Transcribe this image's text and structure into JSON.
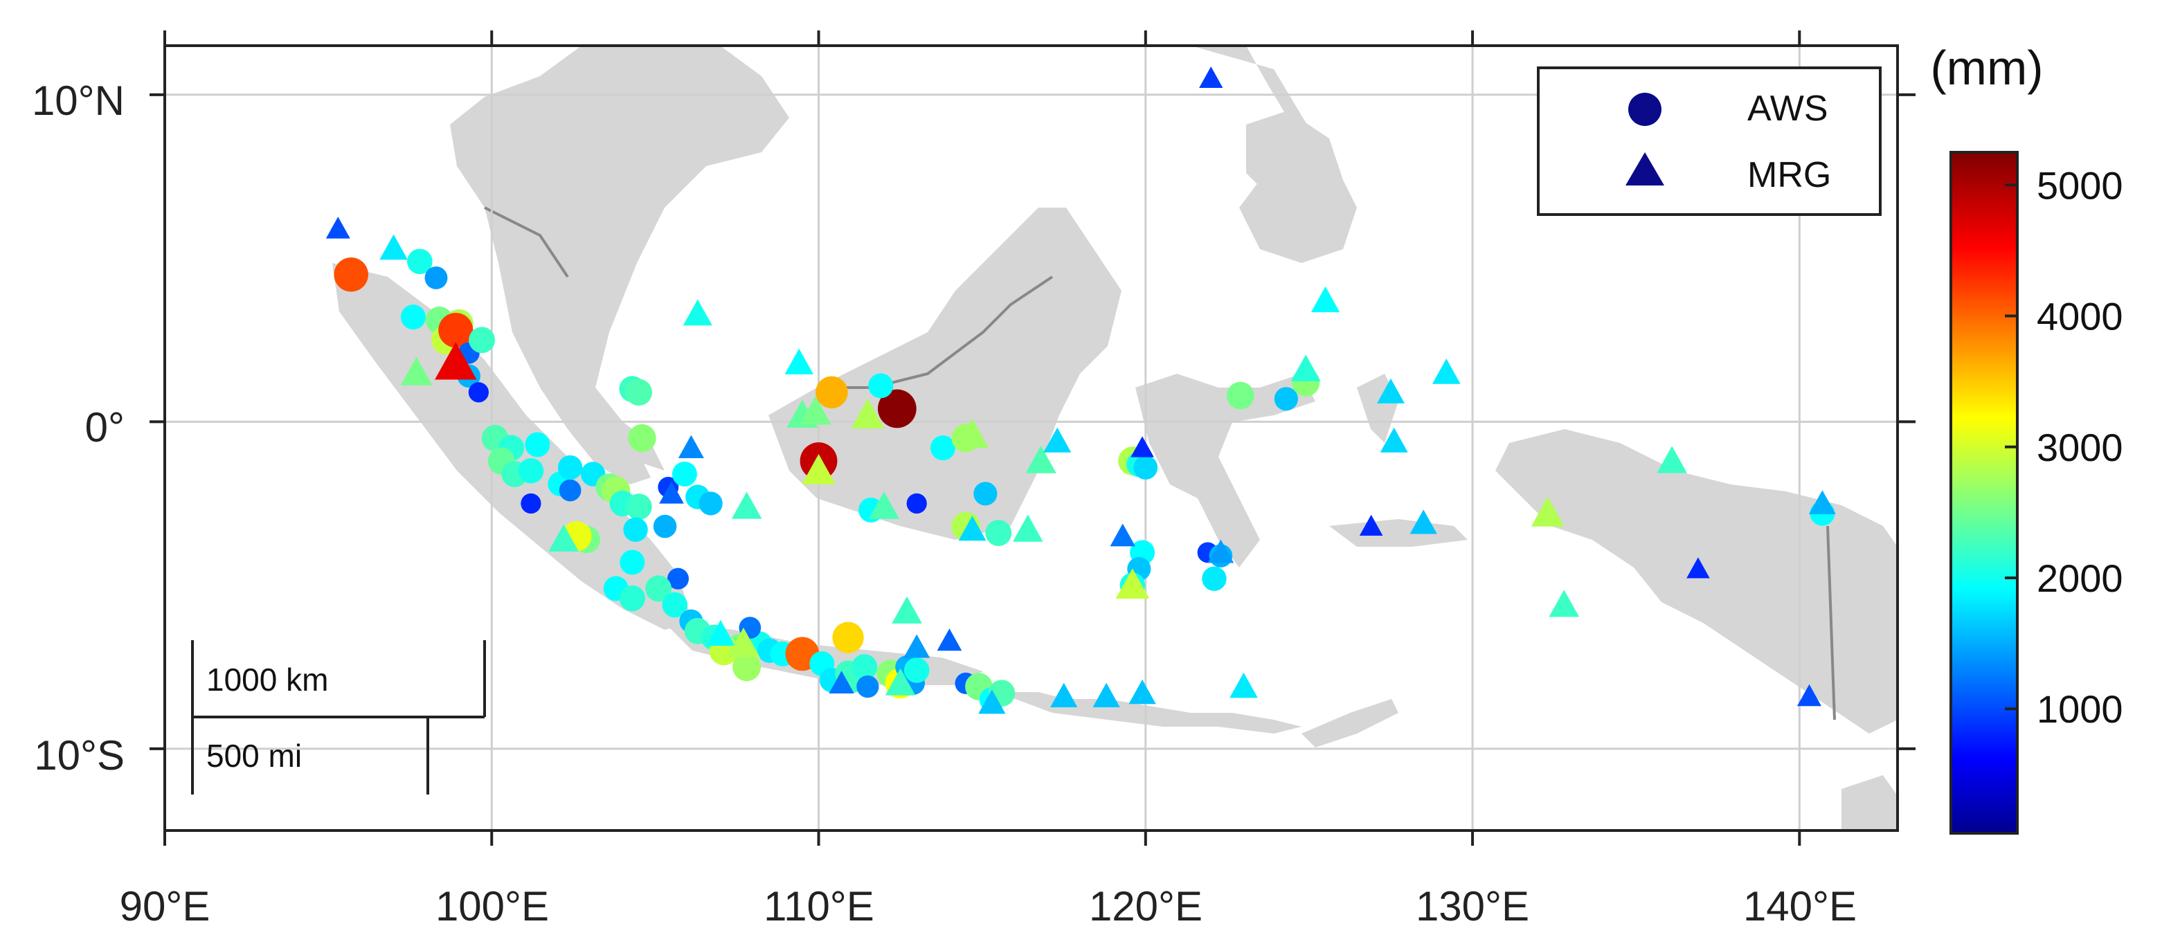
{
  "colorbar": {
    "unit_label": "(mm)",
    "ticks": [
      1000,
      2000,
      3000,
      4000,
      5000
    ],
    "tick_labels": [
      "1000",
      "2000",
      "3000",
      "4000",
      "5000"
    ],
    "range": [
      50,
      5250
    ],
    "colormap": "jet"
  },
  "legend": {
    "placement": "top-right",
    "items": [
      {
        "label": "AWS",
        "marker": "circle",
        "color": "#0a0a8a"
      },
      {
        "label": "MRG",
        "marker": "triangle",
        "color": "#0a0a8a"
      }
    ]
  },
  "axes": {
    "lon_range": [
      90,
      143
    ],
    "lat_range": [
      -12.5,
      11.5
    ],
    "x_ticks": [
      90,
      100,
      110,
      120,
      130,
      140
    ],
    "x_tick_labels": [
      "90°E",
      "100°E",
      "110°E",
      "120°E",
      "130°E",
      "140°E"
    ],
    "y_ticks": [
      10,
      0,
      -10
    ],
    "y_tick_labels": [
      "10°N",
      "0°",
      "10°S"
    ],
    "grid": true
  },
  "scalebar": {
    "km_label": "1000 km",
    "mi_label": "500 mi"
  },
  "chart_data": {
    "type": "scatter",
    "title": "",
    "xlabel": "",
    "ylabel": "",
    "xlim": [
      90,
      143
    ],
    "ylim": [
      -12.5,
      11.5
    ],
    "series": [
      {
        "name": "AWS",
        "marker": "circle",
        "points": [
          [
            95.7,
            4.5,
            4200
          ],
          [
            97.8,
            4.9,
            2100
          ],
          [
            98.3,
            4.4,
            1500
          ],
          [
            97.6,
            3.2,
            2000
          ],
          [
            98.4,
            3.1,
            2600
          ],
          [
            99.0,
            3.0,
            2900
          ],
          [
            98.6,
            2.5,
            3000
          ],
          [
            99.2,
            2.3,
            2800
          ],
          [
            98.9,
            2.8,
            4300
          ],
          [
            99.3,
            2.1,
            1200
          ],
          [
            99.7,
            2.5,
            2300
          ],
          [
            99.3,
            1.4,
            1600
          ],
          [
            99.6,
            0.9,
            900
          ],
          [
            100.1,
            -0.5,
            2400
          ],
          [
            100.6,
            -0.8,
            2200
          ],
          [
            100.3,
            -1.2,
            2500
          ],
          [
            101.4,
            -0.7,
            2000
          ],
          [
            100.7,
            -1.6,
            2300
          ],
          [
            101.2,
            -1.5,
            2100
          ],
          [
            101.2,
            -2.5,
            900
          ],
          [
            102.1,
            -1.9,
            2000
          ],
          [
            102.4,
            -2.1,
            1300
          ],
          [
            102.4,
            -1.4,
            1900
          ],
          [
            103.1,
            -1.6,
            1900
          ],
          [
            103.6,
            -2.0,
            2600
          ],
          [
            103.8,
            -2.1,
            2800
          ],
          [
            104.0,
            -2.5,
            2200
          ],
          [
            104.5,
            -2.6,
            2300
          ],
          [
            104.4,
            -3.3,
            1900
          ],
          [
            105.3,
            -3.2,
            1600
          ],
          [
            105.4,
            -2.0,
            1000
          ],
          [
            105.9,
            -1.6,
            2000
          ],
          [
            106.3,
            -2.3,
            1900
          ],
          [
            106.7,
            -2.5,
            1700
          ],
          [
            104.6,
            -0.5,
            2700
          ],
          [
            104.3,
            1.0,
            2300
          ],
          [
            104.5,
            0.9,
            2400
          ],
          [
            102.9,
            -3.6,
            2600
          ],
          [
            102.6,
            -3.5,
            3200
          ],
          [
            104.3,
            -4.3,
            2000
          ],
          [
            105.7,
            -4.8,
            1200
          ],
          [
            103.8,
            -5.1,
            2000
          ],
          [
            104.3,
            -5.4,
            2200
          ],
          [
            105.1,
            -5.1,
            2300
          ],
          [
            105.6,
            -5.6,
            2100
          ],
          [
            106.1,
            -6.1,
            1700
          ],
          [
            106.3,
            -6.4,
            2300
          ],
          [
            106.8,
            -6.6,
            2200
          ],
          [
            107.6,
            -6.9,
            2600
          ],
          [
            107.8,
            -7.5,
            2800
          ],
          [
            107.1,
            -7.0,
            3000
          ],
          [
            108.2,
            -6.8,
            2100
          ],
          [
            108.5,
            -7.0,
            1900
          ],
          [
            107.9,
            -6.3,
            1300
          ],
          [
            108.9,
            -7.1,
            2000
          ],
          [
            109.5,
            -7.1,
            4100
          ],
          [
            110.1,
            -7.4,
            2000
          ],
          [
            110.4,
            -7.9,
            1900
          ],
          [
            110.9,
            -7.7,
            2300
          ],
          [
            110.9,
            -6.6,
            3500
          ],
          [
            111.0,
            -7.9,
            2300
          ],
          [
            111.4,
            -7.5,
            2200
          ],
          [
            111.5,
            -8.1,
            1400
          ],
          [
            112.2,
            -7.7,
            2700
          ],
          [
            112.5,
            -8.0,
            3300
          ],
          [
            112.7,
            -7.5,
            1600
          ],
          [
            112.9,
            -8.0,
            1500
          ],
          [
            113.0,
            -7.6,
            2100
          ],
          [
            114.5,
            -8.0,
            1200
          ],
          [
            114.9,
            -8.1,
            2600
          ],
          [
            115.3,
            -8.5,
            2000
          ],
          [
            115.6,
            -8.3,
            2400
          ],
          [
            110.0,
            -1.2,
            4900
          ],
          [
            112.4,
            0.4,
            5200
          ],
          [
            110.4,
            0.9,
            3700
          ],
          [
            111.9,
            1.1,
            2000
          ],
          [
            111.6,
            -2.7,
            2000
          ],
          [
            113.0,
            -2.5,
            900
          ],
          [
            113.8,
            -0.8,
            2000
          ],
          [
            114.5,
            -3.2,
            2900
          ],
          [
            115.1,
            -2.2,
            1700
          ],
          [
            115.5,
            -3.4,
            2300
          ],
          [
            114.5,
            -0.5,
            2800
          ],
          [
            119.6,
            -1.2,
            2900
          ],
          [
            119.8,
            -1.3,
            2100
          ],
          [
            120.0,
            -1.4,
            1800
          ],
          [
            119.9,
            -4.0,
            2000
          ],
          [
            119.8,
            -4.5,
            1700
          ],
          [
            119.6,
            -5.0,
            2100
          ],
          [
            121.9,
            -4.0,
            1000
          ],
          [
            122.3,
            -4.1,
            1600
          ],
          [
            122.1,
            -4.8,
            1900
          ],
          [
            122.9,
            0.8,
            2600
          ],
          [
            124.3,
            0.7,
            1700
          ],
          [
            124.9,
            1.2,
            2700
          ],
          [
            140.7,
            -2.8,
            2000
          ]
        ]
      },
      {
        "name": "MRG",
        "marker": "triangle",
        "points": [
          [
            95.3,
            5.9,
            1100
          ],
          [
            97.0,
            5.3,
            1900
          ],
          [
            97.7,
            1.5,
            2600
          ],
          [
            98.9,
            1.8,
            4700
          ],
          [
            102.2,
            -3.6,
            2300
          ],
          [
            105.5,
            -2.2,
            1200
          ],
          [
            106.1,
            -0.8,
            1400
          ],
          [
            106.3,
            3.3,
            2100
          ],
          [
            107.8,
            -2.6,
            2300
          ],
          [
            107.0,
            -6.5,
            2000
          ],
          [
            107.7,
            -6.8,
            2900
          ],
          [
            109.4,
            1.8,
            2000
          ],
          [
            109.5,
            0.2,
            2500
          ],
          [
            109.9,
            0.3,
            2600
          ],
          [
            110.0,
            -1.5,
            3000
          ],
          [
            111.5,
            0.2,
            2900
          ],
          [
            112.0,
            -2.6,
            2400
          ],
          [
            112.7,
            -5.8,
            2300
          ],
          [
            113.0,
            -6.9,
            1500
          ],
          [
            114.0,
            -6.7,
            1200
          ],
          [
            110.7,
            -8.0,
            1300
          ],
          [
            112.5,
            -8.0,
            2300
          ],
          [
            114.7,
            -3.3,
            1800
          ],
          [
            114.7,
            -0.4,
            2800
          ],
          [
            115.3,
            -8.6,
            1700
          ],
          [
            116.8,
            -1.2,
            2400
          ],
          [
            117.3,
            -0.6,
            1800
          ],
          [
            116.4,
            -3.3,
            2300
          ],
          [
            117.5,
            -8.4,
            1700
          ],
          [
            118.8,
            -8.4,
            1700
          ],
          [
            119.9,
            -8.3,
            1700
          ],
          [
            119.3,
            -3.5,
            1300
          ],
          [
            119.9,
            -0.8,
            900
          ],
          [
            119.6,
            -5.0,
            3000
          ],
          [
            122.0,
            10.5,
            1000
          ],
          [
            122.3,
            -4.0,
            1500
          ],
          [
            123.0,
            -8.1,
            1900
          ],
          [
            125.5,
            3.7,
            2000
          ],
          [
            124.9,
            1.6,
            2200
          ],
          [
            126.9,
            -3.2,
            900
          ],
          [
            127.5,
            0.9,
            1800
          ],
          [
            127.6,
            -0.6,
            1800
          ],
          [
            128.5,
            -3.1,
            1700
          ],
          [
            129.2,
            1.5,
            1900
          ],
          [
            132.3,
            -2.8,
            2900
          ],
          [
            132.8,
            -5.6,
            2300
          ],
          [
            136.1,
            -1.2,
            2300
          ],
          [
            136.9,
            -4.5,
            900
          ],
          [
            140.3,
            -8.4,
            1100
          ],
          [
            140.7,
            -2.5,
            1600
          ]
        ]
      }
    ]
  }
}
